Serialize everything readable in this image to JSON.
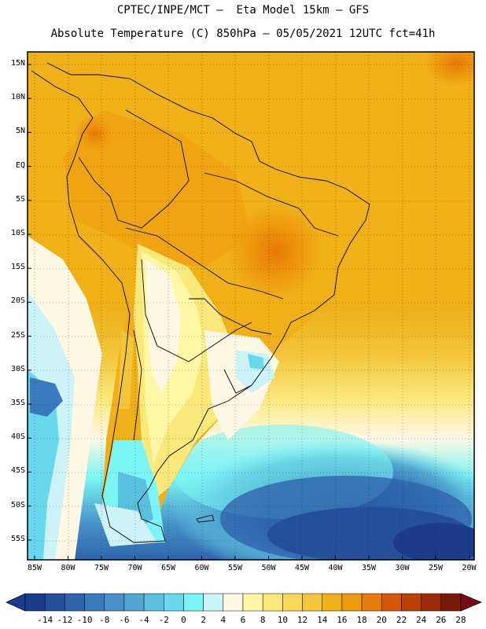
{
  "header": {
    "line1": "CPTEC/INPE/MCT –  Eta Model 15km – GFS",
    "line2": "Absolute Temperature (C) 850hPa – 05/05/2021 12UTC fct=41h"
  },
  "axes": {
    "lat_labels": [
      "15N",
      "10N",
      "5N",
      "EQ",
      "5S",
      "10S",
      "15S",
      "20S",
      "25S",
      "30S",
      "35S",
      "40S",
      "45S",
      "50S",
      "55S"
    ],
    "lon_labels": [
      "85W",
      "80W",
      "75W",
      "70W",
      "65W",
      "60W",
      "55W",
      "50W",
      "45W",
      "40W",
      "35W",
      "30W",
      "25W",
      "20W"
    ]
  },
  "colorbar": {
    "labels": [
      "-14",
      "-12",
      "-10",
      "-8",
      "-6",
      "-4",
      "-2",
      "0",
      "2",
      "4",
      "6",
      "8",
      "10",
      "12",
      "14",
      "16",
      "18",
      "20",
      "22",
      "24",
      "26",
      "28"
    ],
    "colors": [
      "#1c3b8a",
      "#244f9b",
      "#2e65ad",
      "#3a7bbd",
      "#4791c8",
      "#52a6d2",
      "#5bbfe0",
      "#6ad8ec",
      "#7af4f4",
      "#ccf4f8",
      "#fff8e4",
      "#fff7a6",
      "#fbe87a",
      "#f7d95a",
      "#f3c63c",
      "#efb018",
      "#ee9b0e",
      "#e77a08",
      "#d55a08",
      "#b94006",
      "#9a2a08",
      "#7a1a0a"
    ]
  },
  "map": {
    "region": "South America",
    "field": "850hPa temperature"
  }
}
